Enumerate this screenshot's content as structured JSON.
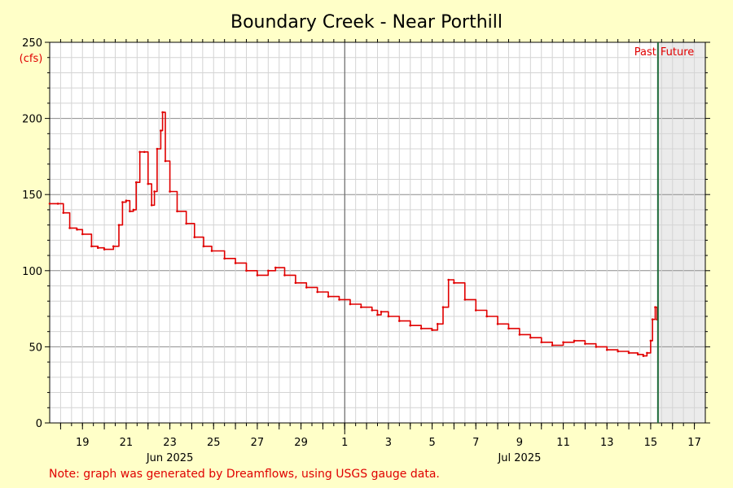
{
  "chart_data": {
    "type": "line",
    "title": "Boundary Creek - Near Porthill",
    "ylabel": "(cfs)",
    "ylim": [
      0,
      250
    ],
    "yticks": [
      0,
      50,
      100,
      150,
      200,
      250
    ],
    "xlim": [
      "2025-06-17T12:00",
      "2025-07-17T12:00"
    ],
    "x_tick_labels": [
      {
        "date": "2025-06-19",
        "label": "19"
      },
      {
        "date": "2025-06-21",
        "label": "21"
      },
      {
        "date": "2025-06-23",
        "label": "23"
      },
      {
        "date": "2025-06-25",
        "label": "25"
      },
      {
        "date": "2025-06-27",
        "label": "27"
      },
      {
        "date": "2025-06-29",
        "label": "29"
      },
      {
        "date": "2025-07-01",
        "label": "1"
      },
      {
        "date": "2025-07-03",
        "label": "3"
      },
      {
        "date": "2025-07-05",
        "label": "5"
      },
      {
        "date": "2025-07-07",
        "label": "7"
      },
      {
        "date": "2025-07-09",
        "label": "9"
      },
      {
        "date": "2025-07-11",
        "label": "11"
      },
      {
        "date": "2025-07-13",
        "label": "13"
      },
      {
        "date": "2025-07-15",
        "label": "15"
      },
      {
        "date": "2025-07-17",
        "label": "17"
      }
    ],
    "month_labels": [
      {
        "date": "2025-06-23",
        "label": "Jun 2025"
      },
      {
        "date": "2025-07-09",
        "label": "Jul 2025"
      }
    ],
    "month_boundary": "2025-07-01",
    "now": "2025-07-15T08:00",
    "past_label": "Past",
    "future_label": "Future",
    "grid": true,
    "series": [
      {
        "color": "#e00000",
        "x": [
          "2025-06-17T12:00",
          "2025-06-17T21:00",
          "2025-06-18T03:00",
          "2025-06-18T10:00",
          "2025-06-18T18:00",
          "2025-06-19T00:00",
          "2025-06-19T10:00",
          "2025-06-19T17:00",
          "2025-06-20T00:00",
          "2025-06-20T10:00",
          "2025-06-20T16:00",
          "2025-06-20T20:00",
          "2025-06-21T00:00",
          "2025-06-21T04:00",
          "2025-06-21T08:00",
          "2025-06-21T11:00",
          "2025-06-21T15:00",
          "2025-06-21T20:00",
          "2025-06-22T00:00",
          "2025-06-22T04:00",
          "2025-06-22T07:00",
          "2025-06-22T10:00",
          "2025-06-22T14:00",
          "2025-06-22T16:00",
          "2025-06-22T19:00",
          "2025-06-23T00:00",
          "2025-06-23T08:00",
          "2025-06-23T18:00",
          "2025-06-24T03:00",
          "2025-06-24T13:00",
          "2025-06-24T22:00",
          "2025-06-25T12:00",
          "2025-06-26T00:00",
          "2025-06-26T12:00",
          "2025-06-27T00:00",
          "2025-06-27T12:00",
          "2025-06-27T20:00",
          "2025-06-28T06:00",
          "2025-06-28T18:00",
          "2025-06-29T06:00",
          "2025-06-29T18:00",
          "2025-06-30T06:00",
          "2025-06-30T18:00",
          "2025-07-01T06:00",
          "2025-07-01T18:00",
          "2025-07-02T06:00",
          "2025-07-02T12:00",
          "2025-07-02T16:00",
          "2025-07-03T00:00",
          "2025-07-03T12:00",
          "2025-07-04T00:00",
          "2025-07-04T12:00",
          "2025-07-05T00:00",
          "2025-07-05T06:00",
          "2025-07-05T12:00",
          "2025-07-05T18:00",
          "2025-07-06T00:00",
          "2025-07-06T12:00",
          "2025-07-07T00:00",
          "2025-07-07T12:00",
          "2025-07-08T00:00",
          "2025-07-08T12:00",
          "2025-07-09T00:00",
          "2025-07-09T12:00",
          "2025-07-10T00:00",
          "2025-07-10T12:00",
          "2025-07-11T00:00",
          "2025-07-11T12:00",
          "2025-07-12T00:00",
          "2025-07-12T12:00",
          "2025-07-13T00:00",
          "2025-07-13T12:00",
          "2025-07-14T00:00",
          "2025-07-14T10:00",
          "2025-07-14T16:00",
          "2025-07-14T20:00",
          "2025-07-15T00:00",
          "2025-07-15T02:00",
          "2025-07-15T05:00",
          "2025-07-15T07:00"
        ],
        "y": [
          144,
          144,
          138,
          128,
          127,
          124,
          116,
          115,
          114,
          116,
          130,
          145,
          146,
          139,
          140,
          158,
          178,
          178,
          157,
          143,
          152,
          180,
          192,
          204,
          172,
          152,
          139,
          131,
          122,
          116,
          113,
          108,
          105,
          100,
          97,
          100,
          102,
          97,
          92,
          89,
          86,
          83,
          81,
          78,
          76,
          74,
          71,
          73,
          70,
          67,
          64,
          62,
          61,
          65,
          76,
          94,
          92,
          81,
          74,
          70,
          65,
          62,
          58,
          56,
          53,
          51,
          53,
          54,
          52,
          50,
          48,
          47,
          46,
          45,
          44,
          46,
          54,
          68,
          76,
          68
        ]
      }
    ]
  },
  "footnote": "Note: graph was generated by Dreamflows, using USGS gauge data."
}
